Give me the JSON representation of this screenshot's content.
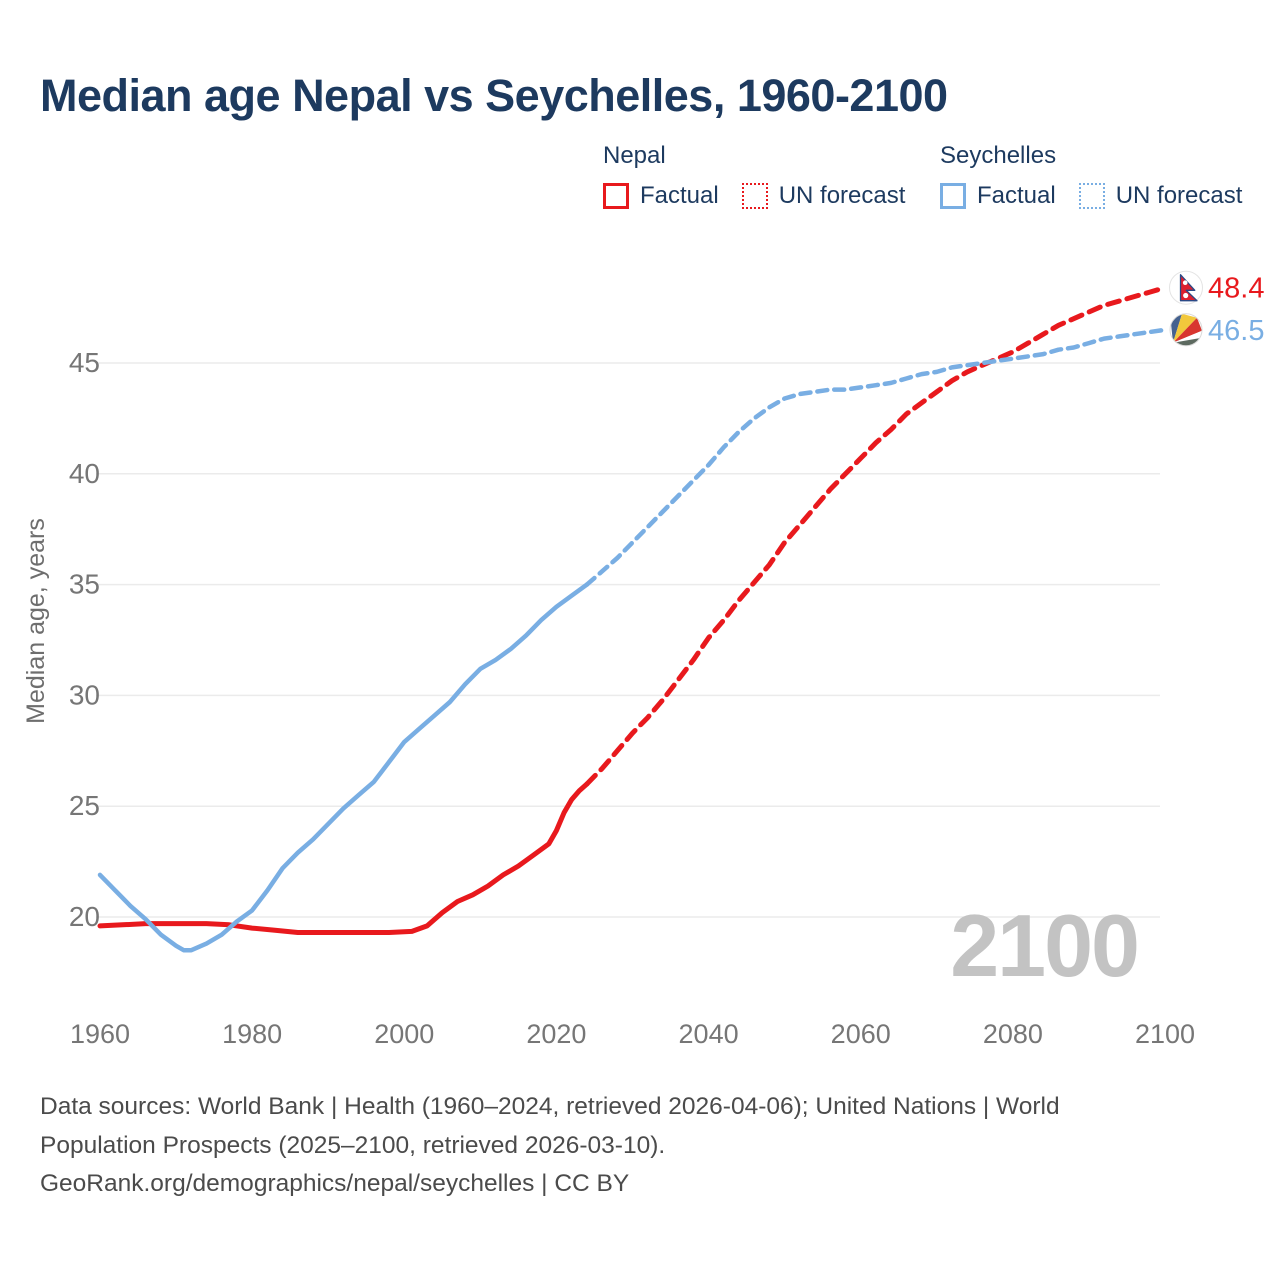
{
  "title": "Median age Nepal vs Seychelles, 1960-2100",
  "legend": {
    "groups": [
      {
        "name": "Nepal",
        "color": "#e8191d",
        "items": [
          {
            "label": "Factual",
            "style": "solid"
          },
          {
            "label": "UN forecast",
            "style": "dotted"
          }
        ]
      },
      {
        "name": "Seychelles",
        "color": "#79aee3",
        "items": [
          {
            "label": "Factual",
            "style": "solid"
          },
          {
            "label": "UN forecast",
            "style": "dotted"
          }
        ]
      }
    ]
  },
  "end_labels": {
    "nepal": {
      "value": "48.4",
      "color": "#e8191d",
      "flag": "nepal-flag-icon"
    },
    "seychelles": {
      "value": "46.5",
      "color": "#79aee3",
      "flag": "seychelles-flag-icon"
    }
  },
  "watermark": "2100",
  "footer": {
    "lines": [
      "Data sources: World Bank | Health (1960–2024, retrieved 2026-04-06); United Nations | World",
      "Population Prospects (2025–2100, retrieved 2026-03-10).",
      "GeoRank.org/demographics/nepal/seychelles | CC BY"
    ]
  },
  "chart_data": {
    "type": "line",
    "title": "Median age Nepal vs Seychelles, 1960-2100",
    "xlabel": "",
    "ylabel": "Median age, years",
    "x_ticks": [
      1960,
      1980,
      2000,
      2020,
      2040,
      2060,
      2080,
      2100
    ],
    "y_ticks": [
      20,
      25,
      30,
      35,
      40,
      45
    ],
    "xlim": [
      1960,
      2100
    ],
    "ylim": [
      17.5,
      50
    ],
    "grid": "horizontal",
    "legend_position": "top",
    "series": [
      {
        "name": "Nepal factual",
        "color": "#e8191d",
        "style": "solid",
        "points": [
          [
            1960,
            19.6
          ],
          [
            1963,
            19.65
          ],
          [
            1966,
            19.7
          ],
          [
            1970,
            19.7
          ],
          [
            1974,
            19.7
          ],
          [
            1977,
            19.65
          ],
          [
            1980,
            19.5
          ],
          [
            1983,
            19.4
          ],
          [
            1986,
            19.3
          ],
          [
            1990,
            19.3
          ],
          [
            1994,
            19.3
          ],
          [
            1998,
            19.3
          ],
          [
            2001,
            19.35
          ],
          [
            2003,
            19.6
          ],
          [
            2005,
            20.2
          ],
          [
            2007,
            20.7
          ],
          [
            2009,
            21.0
          ],
          [
            2011,
            21.4
          ],
          [
            2013,
            21.9
          ],
          [
            2015,
            22.3
          ],
          [
            2017,
            22.8
          ],
          [
            2019,
            23.3
          ],
          [
            2020,
            23.9
          ],
          [
            2021,
            24.7
          ],
          [
            2022,
            25.3
          ],
          [
            2023,
            25.7
          ],
          [
            2024,
            26.0
          ]
        ]
      },
      {
        "name": "Nepal UN forecast",
        "color": "#e8191d",
        "style": "dashed",
        "points": [
          [
            2024,
            26.0
          ],
          [
            2026,
            26.7
          ],
          [
            2028,
            27.5
          ],
          [
            2030,
            28.3
          ],
          [
            2032,
            29.0
          ],
          [
            2034,
            29.8
          ],
          [
            2036,
            30.7
          ],
          [
            2038,
            31.6
          ],
          [
            2040,
            32.6
          ],
          [
            2042,
            33.4
          ],
          [
            2044,
            34.3
          ],
          [
            2046,
            35.1
          ],
          [
            2048,
            35.9
          ],
          [
            2050,
            36.9
          ],
          [
            2052,
            37.7
          ],
          [
            2054,
            38.5
          ],
          [
            2056,
            39.3
          ],
          [
            2058,
            40.0
          ],
          [
            2060,
            40.7
          ],
          [
            2062,
            41.4
          ],
          [
            2064,
            42.0
          ],
          [
            2066,
            42.7
          ],
          [
            2068,
            43.2
          ],
          [
            2070,
            43.7
          ],
          [
            2072,
            44.2
          ],
          [
            2074,
            44.6
          ],
          [
            2076,
            44.9
          ],
          [
            2078,
            45.2
          ],
          [
            2080,
            45.5
          ],
          [
            2082,
            45.9
          ],
          [
            2084,
            46.3
          ],
          [
            2086,
            46.7
          ],
          [
            2088,
            47.0
          ],
          [
            2090,
            47.3
          ],
          [
            2092,
            47.6
          ],
          [
            2094,
            47.8
          ],
          [
            2096,
            48.0
          ],
          [
            2098,
            48.2
          ],
          [
            2100,
            48.4
          ]
        ]
      },
      {
        "name": "Seychelles factual",
        "color": "#79aee3",
        "style": "solid",
        "points": [
          [
            1960,
            21.9
          ],
          [
            1962,
            21.2
          ],
          [
            1964,
            20.5
          ],
          [
            1966,
            19.9
          ],
          [
            1968,
            19.2
          ],
          [
            1970,
            18.7
          ],
          [
            1971,
            18.5
          ],
          [
            1972,
            18.5
          ],
          [
            1974,
            18.8
          ],
          [
            1976,
            19.2
          ],
          [
            1978,
            19.8
          ],
          [
            1980,
            20.3
          ],
          [
            1982,
            21.2
          ],
          [
            1984,
            22.2
          ],
          [
            1986,
            22.9
          ],
          [
            1988,
            23.5
          ],
          [
            1990,
            24.2
          ],
          [
            1992,
            24.9
          ],
          [
            1994,
            25.5
          ],
          [
            1996,
            26.1
          ],
          [
            1998,
            27.0
          ],
          [
            2000,
            27.9
          ],
          [
            2002,
            28.5
          ],
          [
            2004,
            29.1
          ],
          [
            2006,
            29.7
          ],
          [
            2008,
            30.5
          ],
          [
            2010,
            31.2
          ],
          [
            2012,
            31.6
          ],
          [
            2014,
            32.1
          ],
          [
            2016,
            32.7
          ],
          [
            2018,
            33.4
          ],
          [
            2020,
            34.0
          ],
          [
            2022,
            34.5
          ],
          [
            2024,
            35.0
          ]
        ]
      },
      {
        "name": "Seychelles UN forecast",
        "color": "#79aee3",
        "style": "dashed",
        "points": [
          [
            2024,
            35.0
          ],
          [
            2026,
            35.6
          ],
          [
            2028,
            36.2
          ],
          [
            2030,
            36.9
          ],
          [
            2032,
            37.6
          ],
          [
            2034,
            38.3
          ],
          [
            2036,
            39.0
          ],
          [
            2038,
            39.7
          ],
          [
            2040,
            40.4
          ],
          [
            2042,
            41.2
          ],
          [
            2044,
            41.9
          ],
          [
            2046,
            42.5
          ],
          [
            2048,
            43.0
          ],
          [
            2050,
            43.4
          ],
          [
            2052,
            43.6
          ],
          [
            2054,
            43.7
          ],
          [
            2056,
            43.8
          ],
          [
            2058,
            43.8
          ],
          [
            2060,
            43.9
          ],
          [
            2062,
            44.0
          ],
          [
            2064,
            44.1
          ],
          [
            2066,
            44.3
          ],
          [
            2068,
            44.5
          ],
          [
            2070,
            44.6
          ],
          [
            2072,
            44.8
          ],
          [
            2074,
            44.9
          ],
          [
            2076,
            45.0
          ],
          [
            2078,
            45.1
          ],
          [
            2080,
            45.2
          ],
          [
            2082,
            45.3
          ],
          [
            2084,
            45.4
          ],
          [
            2086,
            45.6
          ],
          [
            2088,
            45.7
          ],
          [
            2090,
            45.9
          ],
          [
            2092,
            46.1
          ],
          [
            2094,
            46.2
          ],
          [
            2096,
            46.3
          ],
          [
            2098,
            46.4
          ],
          [
            2100,
            46.5
          ]
        ]
      }
    ]
  }
}
